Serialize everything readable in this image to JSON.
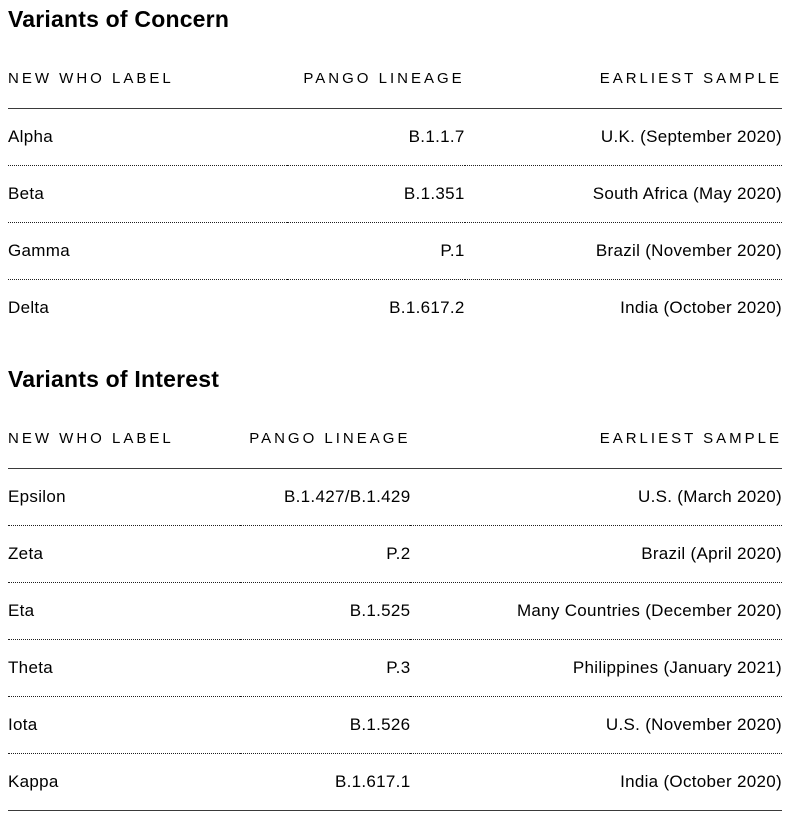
{
  "colors": {
    "background": "#ffffff",
    "text": "#000000",
    "solid_rule": "#3a3a3a",
    "dotted_rule": "#1f1f1f"
  },
  "chart_data": [
    {
      "type": "table",
      "title": "Variants of Concern",
      "columns": [
        "NEW WHO LABEL",
        "PANGO LINEAGE",
        "EARLIEST SAMPLE"
      ],
      "rows": [
        [
          "Alpha",
          "B.1.1.7",
          "U.K. (September 2020)"
        ],
        [
          "Beta",
          "B.1.351",
          "South Africa (May 2020)"
        ],
        [
          "Gamma",
          "P.1",
          "Brazil (November 2020)"
        ],
        [
          "Delta",
          "B.1.617.2",
          "India (October 2020)"
        ]
      ],
      "layout_hints": {
        "column_alignment": [
          "left",
          "right",
          "right"
        ],
        "row_separator": "dotted",
        "header_separator": "solid",
        "bottom_rule": false
      }
    },
    {
      "type": "table",
      "title": "Variants of Interest",
      "columns": [
        "NEW WHO LABEL",
        "PANGO LINEAGE",
        "EARLIEST SAMPLE"
      ],
      "rows": [
        [
          "Epsilon",
          "B.1.427/B.1.429",
          "U.S. (March 2020)"
        ],
        [
          "Zeta",
          "P.2",
          "Brazil (April 2020)"
        ],
        [
          "Eta",
          "B.1.525",
          "Many Countries (December 2020)"
        ],
        [
          "Theta",
          "P.3",
          "Philippines (January 2021)"
        ],
        [
          "Iota",
          "B.1.526",
          "U.S. (November 2020)"
        ],
        [
          "Kappa",
          "B.1.617.1",
          "India (October 2020)"
        ]
      ],
      "layout_hints": {
        "column_alignment": [
          "left",
          "right",
          "right"
        ],
        "row_separator": "dotted",
        "header_separator": "solid",
        "bottom_rule": true
      }
    }
  ]
}
